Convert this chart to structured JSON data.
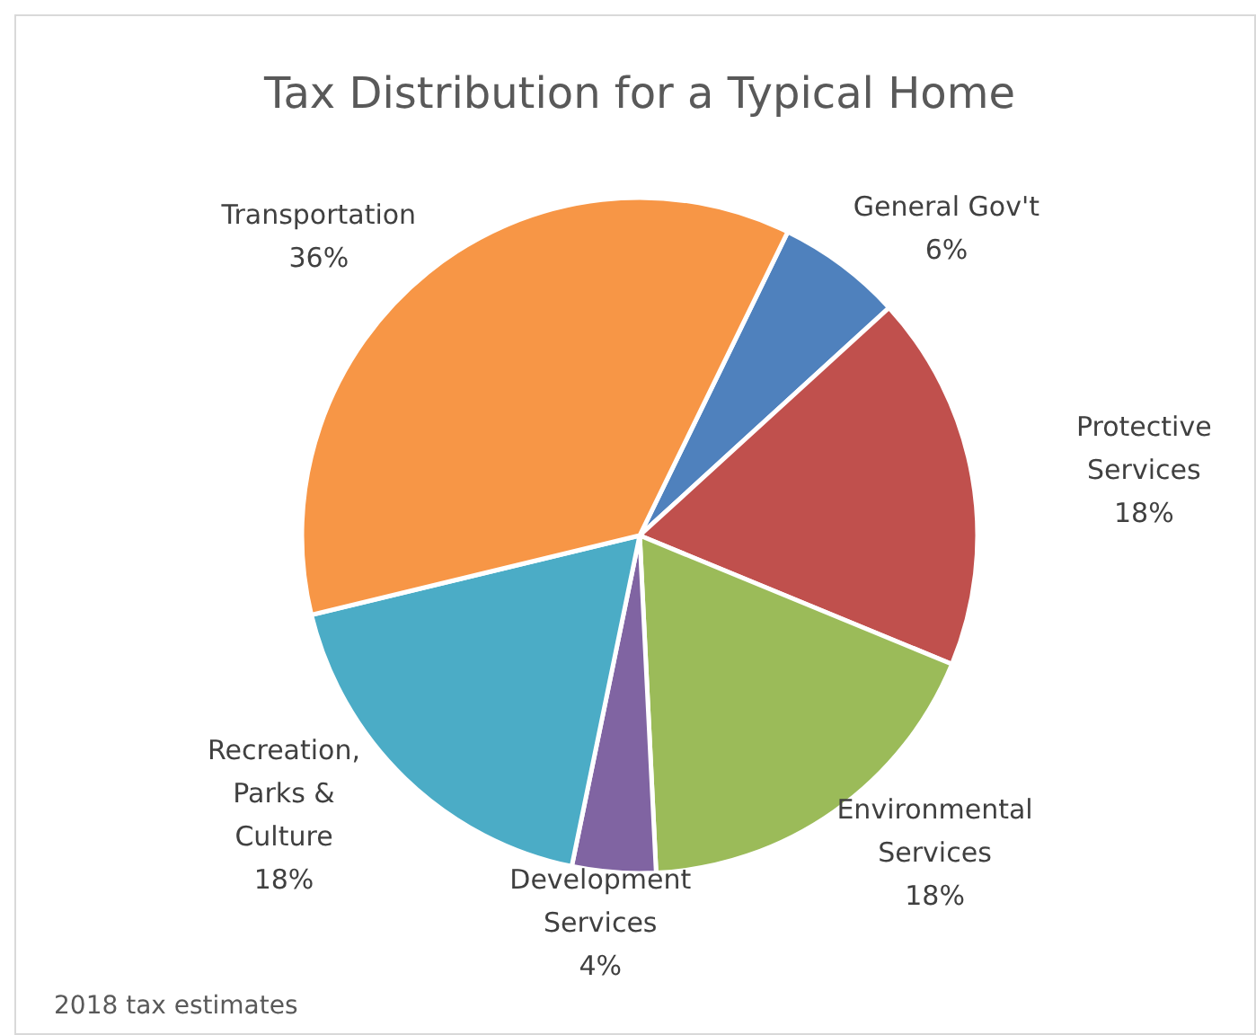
{
  "chart_data": {
    "type": "pie",
    "title": "Tax Distribution for a Typical Home",
    "categories": [
      "General Gov't",
      "Protective Services",
      "Environmental Services",
      "Development Services",
      "Recreation, Parks & Culture",
      "Transportation"
    ],
    "values": [
      6,
      18,
      18,
      4,
      18,
      36
    ],
    "colors": [
      "#4f81bd",
      "#c0504d",
      "#9bbb59",
      "#8064a2",
      "#4bacc6",
      "#f79646"
    ],
    "value_labels": [
      "6%",
      "18%",
      "18%",
      "4%",
      "18%",
      "36%"
    ],
    "annotations": [
      "2018 tax estimates"
    ]
  }
}
